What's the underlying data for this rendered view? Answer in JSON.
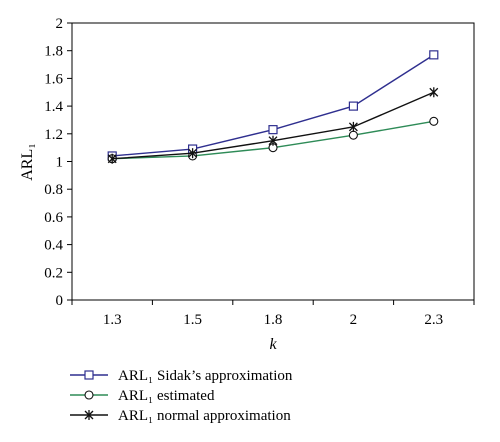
{
  "chart_data": {
    "type": "line",
    "x_categories": [
      "1.3",
      "1.5",
      "1.8",
      "2",
      "2.3"
    ],
    "xlabel": "k",
    "ylabel": "ARL₁",
    "ylim": [
      0,
      2
    ],
    "y_ticks": [
      "0",
      "0.2",
      "0.4",
      "0.6",
      "0.8",
      "1",
      "1.2",
      "1.4",
      "1.6",
      "1.8",
      "2"
    ],
    "grid": false,
    "legend_position": "bottom-left",
    "series": [
      {
        "name": "ARL₁ Sidak’s approximation",
        "marker": "square",
        "color": "#2f2f8f",
        "values": [
          1.04,
          1.09,
          1.23,
          1.4,
          1.77
        ]
      },
      {
        "name": "ARL₁ estimated",
        "marker": "circle",
        "color": "#2e8b57",
        "values": [
          1.02,
          1.04,
          1.1,
          1.19,
          1.29
        ]
      },
      {
        "name": "ARL₁ normal approximation",
        "marker": "star",
        "color": "#111111",
        "values": [
          1.02,
          1.06,
          1.15,
          1.25,
          1.5
        ]
      }
    ]
  }
}
